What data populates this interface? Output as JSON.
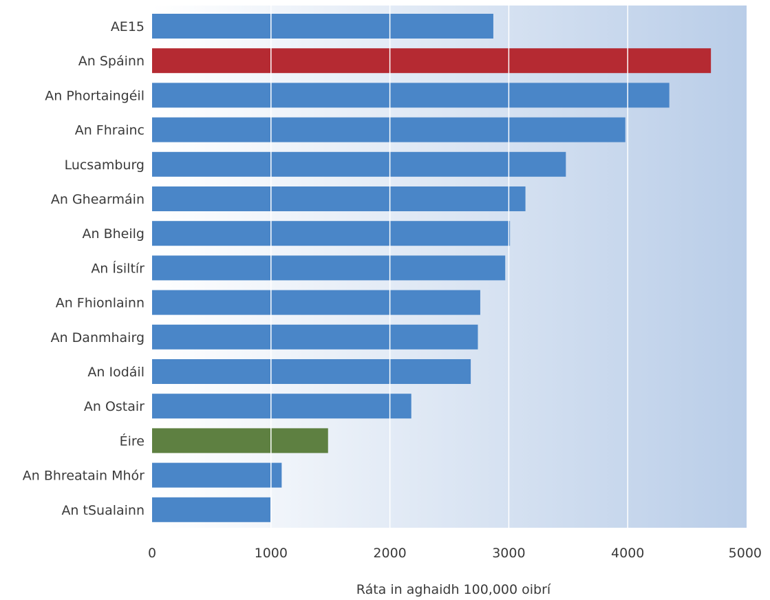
{
  "chart_data": {
    "type": "bar",
    "orientation": "horizontal",
    "title": "",
    "xlabel": "Ráta in aghaidh 100,000 oibrí",
    "ylabel": "",
    "xlim": [
      0,
      5000
    ],
    "xticks": [
      "0",
      "1000",
      "2000",
      "3000",
      "4000",
      "5000"
    ],
    "grid": true,
    "legend": "none",
    "categories": [
      "AE15",
      "An Spáinn",
      "An Phortaingéil",
      "An Fhrainc",
      "Lucsamburg",
      "An Ghearmáin",
      "An Bheilg",
      "An Ísiltír",
      "An Fhionlainn",
      "An Danmhairg",
      "An Iodáil",
      "An Ostair",
      "Éire",
      "An Bhreatain Mhór",
      "An tSualainn"
    ],
    "values": [
      2870,
      4700,
      4350,
      3980,
      3480,
      3140,
      3010,
      2970,
      2760,
      2740,
      2680,
      2180,
      1480,
      1090,
      1000
    ],
    "colors": {
      "default": "#4a86c8",
      "highlight_spain": "#b52a32",
      "highlight_ireland": "#5e8041",
      "background_start": "#ffffff",
      "background_end": "#b9cde8",
      "grid": "#ffffff"
    },
    "highlight": {
      "An Spáinn": "#b52a32",
      "Éire": "#5e8041"
    }
  }
}
